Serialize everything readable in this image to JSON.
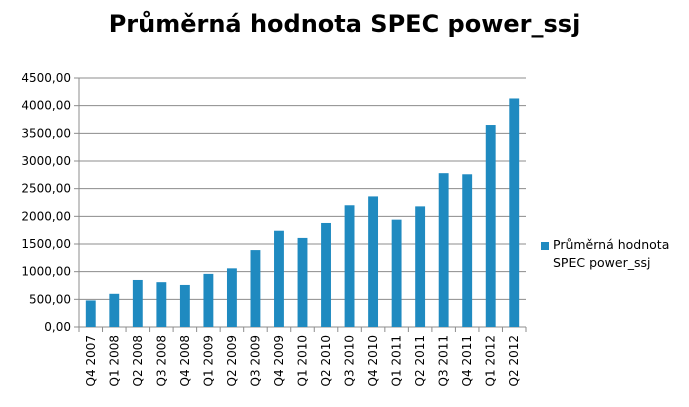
{
  "chart_data": {
    "type": "bar",
    "title": "Průměrná hodnota  SPEC power_ssj",
    "xlabel": "",
    "ylabel": "",
    "ylim": [
      0,
      4500
    ],
    "yticks": [
      "0,00",
      "500,00",
      "1000,00",
      "1500,00",
      "2000,00",
      "2500,00",
      "3000,00",
      "3500,00",
      "4000,00",
      "4500,00"
    ],
    "grid": true,
    "legend_position": "right",
    "categories": [
      "Q4 2007",
      "Q1 2008",
      "Q2 2008",
      "Q3 2008",
      "Q4 2008",
      "Q1 2009",
      "Q2 2009",
      "Q3 2009",
      "Q4 2009",
      "Q1 2010",
      "Q2 2010",
      "Q3 2010",
      "Q4 2010",
      "Q1 2011",
      "Q2 2011",
      "Q3 2011",
      "Q4 2011",
      "Q1 2012",
      "Q2 2012"
    ],
    "series": [
      {
        "name": "Průměrná hodnota SPEC power_ssj",
        "color": "#1F8AC0",
        "values": [
          480,
          600,
          850,
          810,
          760,
          960,
          1060,
          1390,
          1740,
          1610,
          1880,
          2200,
          2360,
          1940,
          2180,
          2780,
          2760,
          3650,
          4130
        ]
      }
    ]
  },
  "legend": {
    "label": "Průměrná hodnota SPEC power_ssj"
  }
}
